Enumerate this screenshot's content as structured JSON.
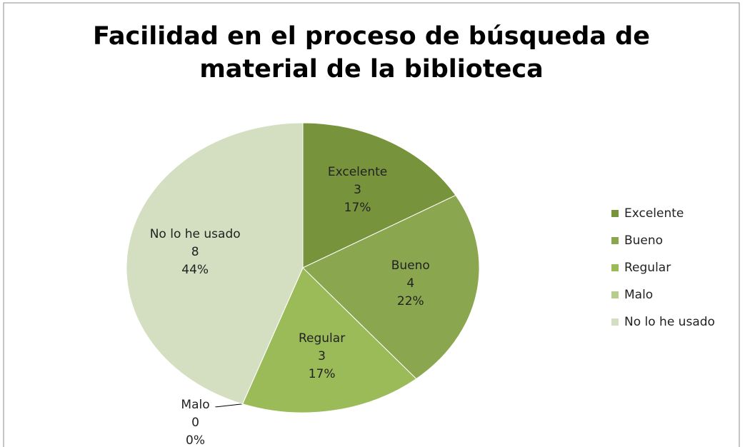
{
  "chart_data": {
    "type": "pie",
    "title": "Facilidad en el proceso de búsqueda de material de la biblioteca",
    "categories": [
      "Excelente",
      "Bueno",
      "Regular",
      "Malo",
      "No lo he usado"
    ],
    "values": [
      3,
      4,
      3,
      0,
      8
    ],
    "percent_labels": [
      "17%",
      "22%",
      "17%",
      "0%",
      "44%"
    ],
    "colors": [
      "#77933c",
      "#8aa64e",
      "#9bbb59",
      "#b7cc8f",
      "#d3dfc0"
    ],
    "legend": "right"
  }
}
